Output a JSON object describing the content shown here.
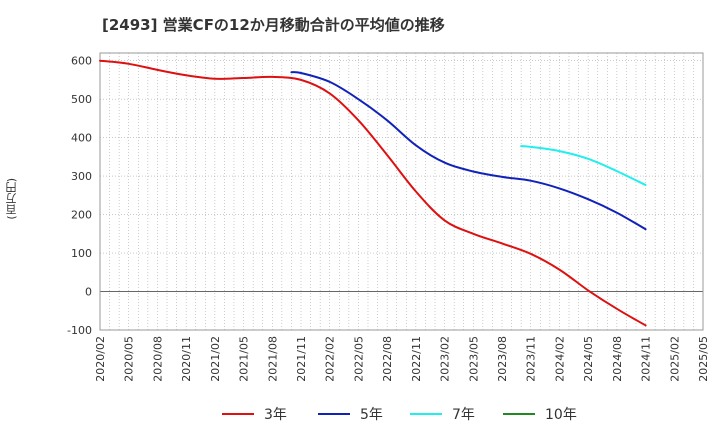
{
  "chart_data": {
    "type": "line",
    "title": "[2493]  営業CFの12か月移動合計の平均値の推移",
    "ylabel": "(百万円)",
    "xlabel": "",
    "ylim": [
      -100,
      620
    ],
    "yticks": [
      -100,
      0,
      100,
      200,
      300,
      400,
      500,
      600
    ],
    "x_ticks": [
      "2020/02",
      "2020/05",
      "2020/08",
      "2020/11",
      "2021/02",
      "2021/05",
      "2021/08",
      "2021/11",
      "2022/02",
      "2022/05",
      "2022/08",
      "2022/11",
      "2023/02",
      "2023/05",
      "2023/08",
      "2023/11",
      "2024/02",
      "2024/05",
      "2024/08",
      "2024/11",
      "2025/02",
      "2025/05"
    ],
    "grid": true,
    "legend_position": "bottom",
    "series": [
      {
        "name": "3年",
        "color": "#dd1111",
        "points": [
          [
            "2020/02",
            600
          ],
          [
            "2020/05",
            592
          ],
          [
            "2020/08",
            576
          ],
          [
            "2020/11",
            562
          ],
          [
            "2021/02",
            553
          ],
          [
            "2021/05",
            555
          ],
          [
            "2021/08",
            558
          ],
          [
            "2021/11",
            550
          ],
          [
            "2022/02",
            515
          ],
          [
            "2022/05",
            445
          ],
          [
            "2022/08",
            355
          ],
          [
            "2022/11",
            260
          ],
          [
            "2023/02",
            185
          ],
          [
            "2023/05",
            150
          ],
          [
            "2023/08",
            125
          ],
          [
            "2023/11",
            98
          ],
          [
            "2024/02",
            57
          ],
          [
            "2024/05",
            3
          ],
          [
            "2024/08",
            -45
          ],
          [
            "2024/11",
            -88
          ]
        ]
      },
      {
        "name": "5年",
        "color": "#1122bb",
        "points": [
          [
            "2021/10",
            570
          ],
          [
            "2021/11",
            568
          ],
          [
            "2022/02",
            545
          ],
          [
            "2022/05",
            500
          ],
          [
            "2022/08",
            445
          ],
          [
            "2022/11",
            380
          ],
          [
            "2023/02",
            335
          ],
          [
            "2023/05",
            312
          ],
          [
            "2023/08",
            298
          ],
          [
            "2023/11",
            288
          ],
          [
            "2024/02",
            268
          ],
          [
            "2024/05",
            240
          ],
          [
            "2024/08",
            205
          ],
          [
            "2024/11",
            162
          ]
        ]
      },
      {
        "name": "7年",
        "color": "#22eeee",
        "points": [
          [
            "2023/10",
            378
          ],
          [
            "2023/11",
            376
          ],
          [
            "2024/02",
            365
          ],
          [
            "2024/05",
            345
          ],
          [
            "2024/08",
            313
          ],
          [
            "2024/11",
            277
          ]
        ]
      },
      {
        "name": "10年",
        "color": "#228822",
        "points": []
      }
    ]
  }
}
